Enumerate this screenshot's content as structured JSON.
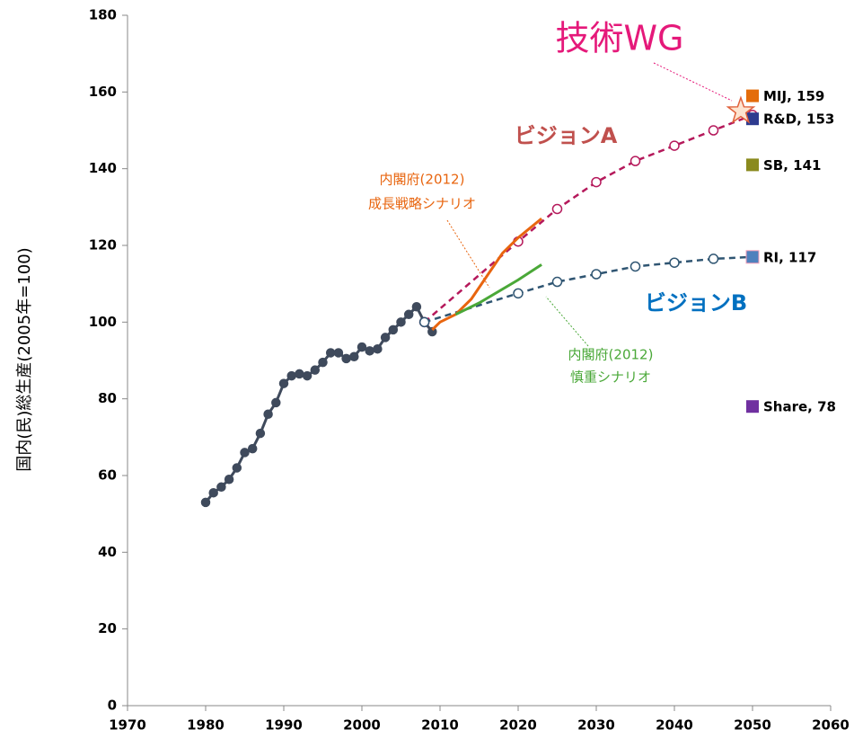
{
  "chart_data": {
    "type": "line",
    "y_label": "国内(民)総生産(2005年=100)",
    "xlim": [
      1970,
      2060
    ],
    "xticks": [
      1970,
      1980,
      1990,
      2000,
      2010,
      2020,
      2030,
      2040,
      2050,
      2060
    ],
    "ylim": [
      0,
      180
    ],
    "yticks": [
      0,
      20,
      40,
      60,
      80,
      100,
      120,
      140,
      160,
      180
    ],
    "grid": false,
    "series": [
      {
        "color": "#3f4a5c",
        "dash": false,
        "marker": "filled",
        "x": [
          1980,
          1981,
          1982,
          1983,
          1984,
          1985,
          1986,
          1987,
          1988,
          1989,
          1990,
          1991,
          1992,
          1993,
          1994,
          1995,
          1996,
          1997,
          1998,
          1999,
          2000,
          2001,
          2002,
          2003,
          2004,
          2005,
          2006,
          2007,
          2008,
          2009
        ],
        "values": [
          53,
          55.5,
          57,
          59,
          62,
          66,
          67,
          71,
          76,
          79,
          84,
          86,
          86.5,
          86,
          87.5,
          89.5,
          92,
          92,
          90.5,
          91,
          93.5,
          92.5,
          93,
          96,
          98,
          100,
          102,
          104,
          100,
          97.5
        ]
      },
      {
        "color": "#b5195b",
        "dash": true,
        "marker": "open",
        "x": [
          2008,
          2020,
          2025,
          2030,
          2035,
          2040,
          2045,
          2050
        ],
        "values": [
          100,
          121,
          129.5,
          136.5,
          142,
          146,
          150,
          154
        ]
      },
      {
        "color": "#2f5572",
        "dash": true,
        "marker": "open",
        "x": [
          2008,
          2020,
          2025,
          2030,
          2035,
          2040,
          2045,
          2050
        ],
        "values": [
          100,
          107.5,
          110.5,
          112.5,
          114.5,
          115.5,
          116.5,
          117
        ]
      },
      {
        "color": "#e8650f",
        "dash": false,
        "marker": "none",
        "x": [
          2009,
          2010,
          2012,
          2014,
          2016,
          2018,
          2020,
          2023
        ],
        "values": [
          98,
          100,
          102,
          106,
          112,
          118,
          122,
          127
        ]
      },
      {
        "color": "#4aa838",
        "dash": false,
        "marker": "none",
        "x": [
          2012,
          2015,
          2020,
          2023
        ],
        "values": [
          102,
          105,
          111,
          115
        ]
      }
    ],
    "points": {
      "x": [
        2050,
        2050,
        2050,
        2050,
        2050
      ],
      "values": [
        159,
        153,
        141,
        117,
        78
      ],
      "value_labels": [
        "MIJ, 159",
        "R&D, 153",
        "SB, 141",
        "RI, 117",
        "Share, 78"
      ],
      "colors": [
        "#e46c0a",
        "#2e3b8f",
        "#8a8a1e",
        "#4f81bd",
        "#7030a0"
      ]
    },
    "star": {
      "x": [
        2048.5
      ],
      "values": [
        155
      ],
      "color": "#f4a582"
    },
    "annotations": [
      {
        "text": "技術WG",
        "color": "#e5197a"
      },
      {
        "text": "ビジョンA",
        "color": "#c0504d"
      },
      {
        "text": "ビジョンB",
        "color": "#0070c0"
      },
      {
        "text": "内閣府(2012)",
        "color": "#e8650f"
      },
      {
        "text": "成長戦略シナリオ",
        "color": "#e8650f"
      },
      {
        "text": "内閣府(2012)",
        "color": "#4aa838"
      },
      {
        "text": "慎重シナリオ",
        "color": "#4aa838"
      }
    ]
  }
}
